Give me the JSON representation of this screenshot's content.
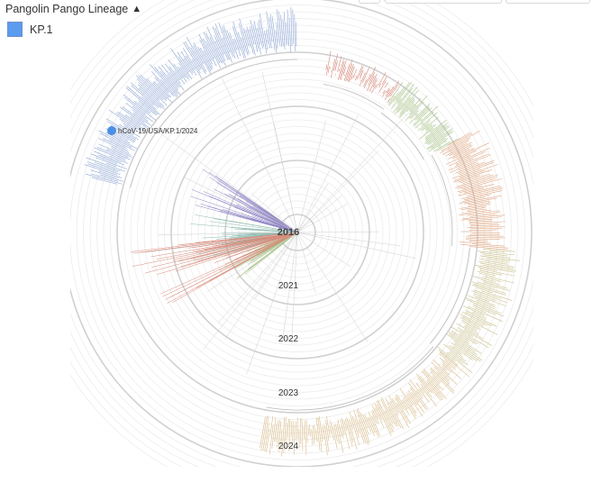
{
  "legend": {
    "title": "Pangolin Pango Lineage",
    "toggle_icon": "chevron-up-icon",
    "items": [
      {
        "label": "KP.1",
        "color": "#5b9cf0"
      }
    ]
  },
  "tree": {
    "root_label": "2016",
    "year_labels": [
      "2021",
      "2022",
      "2023",
      "2024"
    ],
    "selected_tip": {
      "label": "hCoV-19/USA/KP.1/2024",
      "color": "#4a8ee6"
    }
  },
  "colors": {
    "blue": "#8ea6d4",
    "red": "#d88a7a",
    "green": "#a9c48a",
    "olive": "#c9c08a",
    "orange": "#e0a884",
    "purple": "#8e84c4",
    "teal": "#8fbcb0",
    "sand": "#d9bc8a"
  }
}
